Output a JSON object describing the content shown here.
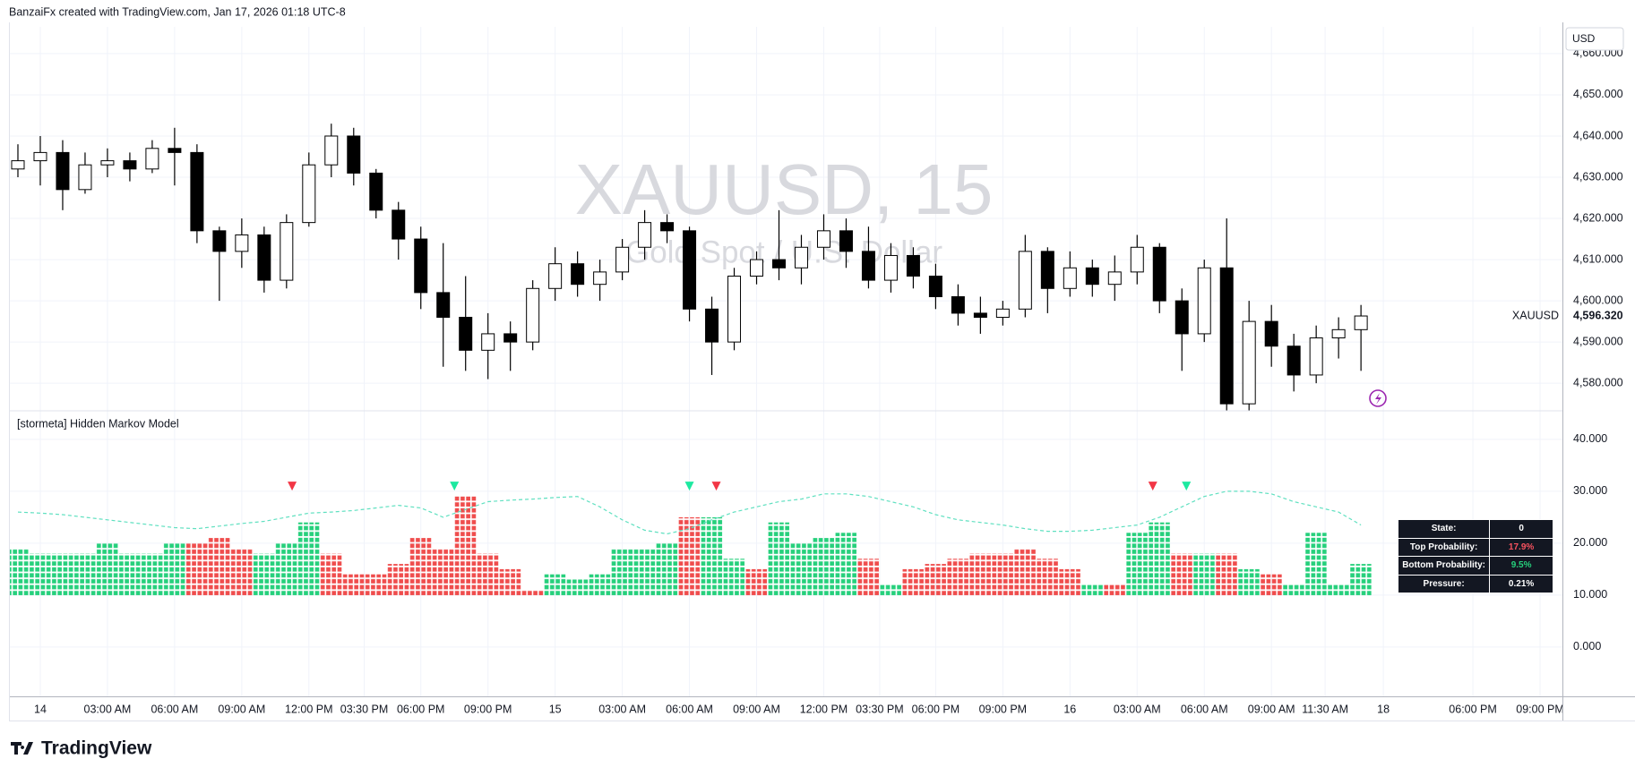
{
  "header": {
    "text": "BanzaiFx created with TradingView.com, Jan 17, 2026 01:18 UTC-8",
    "currency": "USD"
  },
  "watermark": {
    "title": "XAUUSD, 15",
    "subtitle": "Gold Spot / U.S. Dollar"
  },
  "footer": {
    "logo": "TradingView"
  },
  "table": {
    "rows": [
      [
        "State:",
        "0"
      ],
      [
        "Top Probability:",
        "17.9%"
      ],
      [
        "Bottom Probability:",
        "9.5%"
      ],
      [
        "Pressure:",
        "0.21%"
      ]
    ]
  },
  "chart_data": [
    {
      "type": "candlestick",
      "symbol": "XAUUSD",
      "last_price": {
        "value": 4596.32,
        "label": "4,596.320"
      },
      "up_color": "#ffffff",
      "down_color": "#000000",
      "wick_color": "#000000",
      "xlim": [
        -1.4,
        68.0
      ],
      "ylim": [
        4573.3,
        4666.5
      ],
      "yticks": [
        {
          "value": 4580,
          "label": "4,580.000"
        },
        {
          "value": 4590,
          "label": "4,590.000"
        },
        {
          "value": 4600,
          "label": "4,600.000"
        },
        {
          "value": 4610,
          "label": "4,610.000"
        },
        {
          "value": 4620,
          "label": "4,620.000"
        },
        {
          "value": 4630,
          "label": "4,630.000"
        },
        {
          "value": 4640,
          "label": "4,640.000"
        },
        {
          "value": 4650,
          "label": "4,650.000"
        },
        {
          "value": 4660,
          "label": "4,660.000"
        }
      ],
      "grid": true,
      "x": [
        -1,
        0,
        1,
        2,
        3,
        4,
        5,
        6,
        7,
        8,
        9,
        10,
        11,
        12,
        13,
        14,
        15,
        16,
        17,
        18,
        19,
        20,
        21,
        22,
        23,
        24,
        25,
        26,
        27,
        28,
        29,
        30,
        31,
        32,
        33,
        34,
        35,
        36,
        37,
        38,
        39,
        40,
        41,
        42,
        43,
        44,
        45,
        46,
        47,
        48,
        49,
        50,
        51,
        52,
        53,
        54,
        55,
        56,
        57,
        58,
        59
      ],
      "open": [
        4632,
        4634,
        4636,
        4627,
        4633,
        4634,
        4632,
        4637,
        4636,
        4617,
        4612,
        4616,
        4605,
        4619,
        4633,
        4640,
        4631,
        4622,
        4615,
        4602,
        4596,
        4588,
        4592,
        4590,
        4603,
        4609,
        4604,
        4607,
        4613,
        4619,
        4617,
        4598,
        4590,
        4606,
        4610,
        4608,
        4613,
        4617,
        4612,
        4605,
        4611,
        4606,
        4601,
        4597,
        4596,
        4598,
        4612,
        4603,
        4608,
        4604,
        4607,
        4613,
        4600,
        4592,
        4608,
        4575,
        4595,
        4589,
        4582,
        4591,
        4593
      ],
      "high": [
        4638,
        4640,
        4639,
        4636,
        4637,
        4636,
        4639,
        4642,
        4638,
        4618,
        4620,
        4618,
        4621,
        4636,
        4643,
        4642,
        4632,
        4624,
        4618,
        4614,
        4606,
        4597,
        4595,
        4605,
        4613,
        4612,
        4610,
        4615,
        4622,
        4621,
        4618,
        4601,
        4608,
        4612,
        4622,
        4616,
        4621,
        4620,
        4618,
        4614,
        4613,
        4609,
        4604,
        4601,
        4600,
        4616,
        4613,
        4612,
        4610,
        4611,
        4616,
        4614,
        4603,
        4610,
        4620,
        4600,
        4599,
        4592,
        4594,
        4596,
        4599
      ],
      "low": [
        4630,
        4628,
        4622,
        4626,
        4630,
        4629,
        4631,
        4628,
        4614,
        4600,
        4608,
        4602,
        4603,
        4618,
        4630,
        4628,
        4620,
        4610,
        4598,
        4584,
        4583,
        4581,
        4583,
        4588,
        4600,
        4601,
        4600,
        4605,
        4610,
        4614,
        4595,
        4582,
        4588,
        4604,
        4605,
        4604,
        4610,
        4608,
        4603,
        4602,
        4603,
        4598,
        4594,
        4592,
        4594,
        4596,
        4597,
        4601,
        4601,
        4600,
        4604,
        4597,
        4583,
        4590,
        4570,
        4573,
        4584,
        4578,
        4580,
        4586,
        4583
      ],
      "close": [
        4634,
        4636,
        4627,
        4633,
        4634,
        4632,
        4637,
        4636,
        4617,
        4612,
        4616,
        4605,
        4619,
        4633,
        4640,
        4631,
        4622,
        4615,
        4602,
        4596,
        4588,
        4592,
        4590,
        4603,
        4609,
        4604,
        4607,
        4613,
        4619,
        4617,
        4598,
        4590,
        4606,
        4610,
        4608,
        4613,
        4617,
        4612,
        4605,
        4611,
        4606,
        4601,
        4597,
        4596,
        4598,
        4612,
        4603,
        4608,
        4604,
        4607,
        4613,
        4600,
        4592,
        4608,
        4575,
        4595,
        4589,
        4582,
        4591,
        4593,
        4596.32
      ]
    },
    {
      "type": "dot-histogram",
      "title": "[stormeta] Hidden Markov Model",
      "xlim": [
        -1.4,
        68.0
      ],
      "ylim": [
        -9.5,
        45.5
      ],
      "xticks": [
        {
          "value": 0,
          "label": "14"
        },
        {
          "value": 3,
          "label": "03:00 AM"
        },
        {
          "value": 6,
          "label": "06:00 AM"
        },
        {
          "value": 9,
          "label": "09:00 AM"
        },
        {
          "value": 12,
          "label": "12:00 PM"
        },
        {
          "value": 14.47,
          "label": "03:30 PM"
        },
        {
          "value": 17,
          "label": "06:00 PM"
        },
        {
          "value": 20,
          "label": "09:00 PM"
        },
        {
          "value": 23,
          "label": "15"
        },
        {
          "value": 26,
          "label": "03:00 AM"
        },
        {
          "value": 29,
          "label": "06:00 AM"
        },
        {
          "value": 32,
          "label": "09:00 AM"
        },
        {
          "value": 35,
          "label": "12:00 PM"
        },
        {
          "value": 37.5,
          "label": "03:30 PM"
        },
        {
          "value": 40,
          "label": "06:00 PM"
        },
        {
          "value": 43,
          "label": "09:00 PM"
        },
        {
          "value": 46,
          "label": "16"
        },
        {
          "value": 49,
          "label": "03:00 AM"
        },
        {
          "value": 52,
          "label": "06:00 AM"
        },
        {
          "value": 55,
          "label": "09:00 AM"
        },
        {
          "value": 57.4,
          "label": "11:30 AM"
        },
        {
          "value": 60,
          "label": "18"
        },
        {
          "value": 64,
          "label": "06:00 PM"
        },
        {
          "value": 67,
          "label": "09:00 PM"
        }
      ],
      "yticks": [
        {
          "value": 0,
          "label": "0.000"
        },
        {
          "value": 10,
          "label": "10.000"
        },
        {
          "value": 20,
          "label": "20.000"
        },
        {
          "value": 30,
          "label": "30.000"
        },
        {
          "value": 40,
          "label": "40.000"
        }
      ],
      "grid": true,
      "x": [
        -1,
        0,
        1,
        2,
        3,
        4,
        5,
        6,
        7,
        8,
        9,
        10,
        11,
        12,
        13,
        14,
        15,
        16,
        17,
        18,
        19,
        20,
        21,
        22,
        23,
        24,
        25,
        26,
        27,
        28,
        29,
        30,
        31,
        32,
        33,
        34,
        35,
        36,
        37,
        38,
        39,
        40,
        41,
        42,
        43,
        44,
        45,
        46,
        47,
        48,
        49,
        50,
        51,
        52,
        53,
        54,
        55,
        56,
        57,
        58,
        59
      ],
      "values": [
        19,
        18,
        18,
        18,
        20,
        18,
        18,
        20,
        20,
        21,
        19,
        18,
        20,
        24,
        18,
        14,
        14,
        16,
        21,
        19,
        29,
        18,
        15,
        11,
        14,
        13,
        14,
        19,
        19,
        20,
        25,
        25,
        17,
        15,
        24,
        20,
        21,
        22,
        17,
        12,
        15,
        16,
        17,
        18,
        18,
        19,
        17,
        15,
        12,
        12,
        22,
        24,
        18,
        18,
        18,
        15,
        14,
        12,
        22,
        12,
        16
      ],
      "colors": [
        "#26d07c",
        "#26d07c",
        "#26d07c",
        "#26d07c",
        "#26d07c",
        "#26d07c",
        "#26d07c",
        "#26d07c",
        "#ef4d4d",
        "#ef4d4d",
        "#ef4d4d",
        "#26d07c",
        "#26d07c",
        "#26d07c",
        "#ef4d4d",
        "#ef4d4d",
        "#ef4d4d",
        "#ef4d4d",
        "#ef4d4d",
        "#ef4d4d",
        "#ef4d4d",
        "#ef4d4d",
        "#ef4d4d",
        "#ef4d4d",
        "#26d07c",
        "#26d07c",
        "#26d07c",
        "#26d07c",
        "#26d07c",
        "#26d07c",
        "#ef4d4d",
        "#26d07c",
        "#26d07c",
        "#ef4d4d",
        "#26d07c",
        "#26d07c",
        "#26d07c",
        "#26d07c",
        "#ef4d4d",
        "#26d07c",
        "#ef4d4d",
        "#ef4d4d",
        "#ef4d4d",
        "#ef4d4d",
        "#ef4d4d",
        "#ef4d4d",
        "#ef4d4d",
        "#ef4d4d",
        "#26d07c",
        "#ef4d4d",
        "#26d07c",
        "#26d07c",
        "#ef4d4d",
        "#26d07c",
        "#ef4d4d",
        "#26d07c",
        "#ef4d4d",
        "#26d07c",
        "#26d07c",
        "#26d07c",
        "#26d07c"
      ],
      "line": {
        "color": "#5fe0c0",
        "values": [
          26,
          25.8,
          25.5,
          25,
          24.5,
          24,
          23.5,
          23,
          22.8,
          23.3,
          23.8,
          24.2,
          25,
          25.8,
          26,
          26.3,
          26.8,
          27.3,
          26.8,
          25,
          26.5,
          28,
          28.3,
          28.5,
          28.8,
          29,
          27,
          24.5,
          22.5,
          21.8,
          22.8,
          24.5,
          26,
          27,
          28,
          28.5,
          29.5,
          29.5,
          29,
          28,
          27,
          25.5,
          24.5,
          24,
          23.5,
          22.8,
          22.3,
          22.3,
          22.5,
          23,
          23.5,
          25,
          27,
          29,
          30,
          30,
          29.5,
          28,
          27,
          26,
          23.5
        ]
      },
      "signals": {
        "x": [
          11.25,
          18.5,
          29,
          30.2,
          49.7,
          51.2
        ],
        "values": [
          31,
          31,
          31,
          31,
          31,
          31
        ],
        "colors": [
          "#f23645",
          "#1de9a0",
          "#1de9a0",
          "#f23645",
          "#f23645",
          "#1de9a0"
        ]
      }
    }
  ]
}
